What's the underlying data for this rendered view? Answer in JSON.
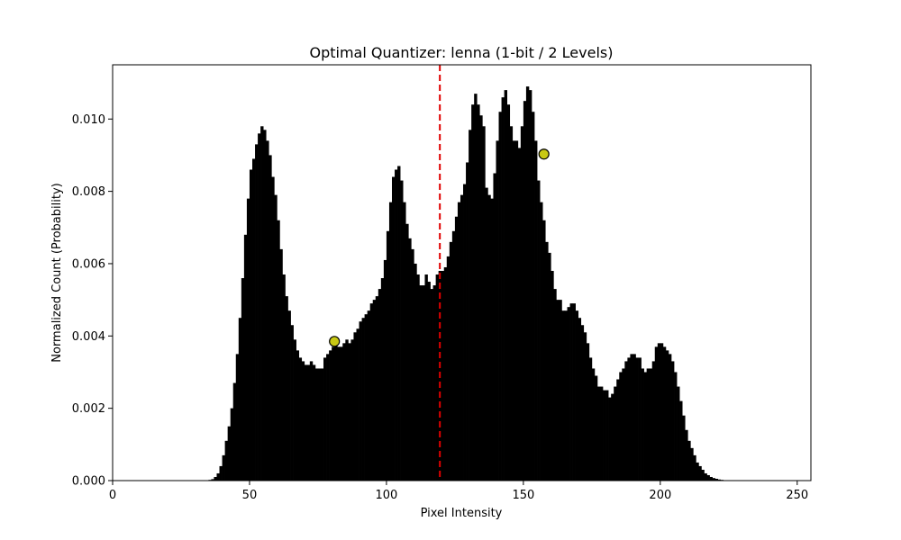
{
  "chart_data": {
    "type": "bar",
    "title": "Optimal Quantizer: lenna (1-bit / 2 Levels)",
    "xlabel": "Pixel Intensity",
    "ylabel": "Normalized Count (Probability)",
    "xlim": [
      0,
      255
    ],
    "ylim": [
      0,
      0.0115
    ],
    "xticks": [
      0,
      50,
      100,
      150,
      200,
      250
    ],
    "yticks": [
      0.0,
      0.002,
      0.004,
      0.006,
      0.008,
      0.01
    ],
    "ytick_labels": [
      "0.000",
      "0.002",
      "0.004",
      "0.006",
      "0.008",
      "0.010"
    ],
    "grid": false,
    "threshold": {
      "x": 119.5,
      "color": "#e00000",
      "style": "dashed"
    },
    "levels": [
      {
        "x": 81,
        "y": 0.00385
      },
      {
        "x": 157.5,
        "y": 0.00903
      }
    ],
    "histogram": {
      "bin_start": 0,
      "bin_width": 1,
      "values": [
        0,
        0,
        0,
        0,
        0,
        0,
        0,
        0,
        0,
        0,
        0,
        0,
        0,
        0,
        0,
        0,
        0,
        0,
        0,
        0,
        0,
        0,
        0,
        0,
        0,
        0,
        0,
        0,
        0,
        0,
        0,
        0,
        0,
        0,
        0,
        2e-05,
        4e-05,
        0.0001,
        0.0002,
        0.0004,
        0.0007,
        0.0011,
        0.0015,
        0.002,
        0.0027,
        0.0035,
        0.0045,
        0.0056,
        0.0068,
        0.0078,
        0.0086,
        0.0089,
        0.0093,
        0.0096,
        0.0098,
        0.0097,
        0.0094,
        0.009,
        0.0084,
        0.0079,
        0.0072,
        0.0064,
        0.0057,
        0.0051,
        0.0047,
        0.0043,
        0.0039,
        0.0036,
        0.0034,
        0.0033,
        0.0032,
        0.0032,
        0.0033,
        0.0032,
        0.0031,
        0.0031,
        0.0031,
        0.0034,
        0.0035,
        0.0036,
        0.0037,
        0.0038,
        0.0037,
        0.0037,
        0.0038,
        0.0039,
        0.0038,
        0.0039,
        0.0041,
        0.0042,
        0.0044,
        0.0045,
        0.0046,
        0.0047,
        0.0049,
        0.005,
        0.0051,
        0.0053,
        0.0056,
        0.0061,
        0.0069,
        0.0077,
        0.0084,
        0.0086,
        0.0087,
        0.0083,
        0.0077,
        0.0071,
        0.0067,
        0.0064,
        0.006,
        0.0057,
        0.0054,
        0.0054,
        0.0057,
        0.0055,
        0.0053,
        0.0054,
        0.0057,
        0.0058,
        0.0058,
        0.0059,
        0.0062,
        0.0066,
        0.0069,
        0.0073,
        0.0077,
        0.0079,
        0.0082,
        0.0088,
        0.0097,
        0.0104,
        0.0107,
        0.0104,
        0.0101,
        0.0098,
        0.0081,
        0.0079,
        0.0078,
        0.0085,
        0.0094,
        0.0102,
        0.0106,
        0.0108,
        0.0104,
        0.0098,
        0.0094,
        0.0094,
        0.0092,
        0.0098,
        0.0105,
        0.0109,
        0.0108,
        0.0102,
        0.0094,
        0.0083,
        0.0077,
        0.0072,
        0.0066,
        0.0063,
        0.0058,
        0.0053,
        0.005,
        0.005,
        0.0047,
        0.0047,
        0.0048,
        0.0049,
        0.0049,
        0.0047,
        0.0045,
        0.0043,
        0.0041,
        0.0038,
        0.0034,
        0.0031,
        0.0029,
        0.0026,
        0.0026,
        0.0025,
        0.0025,
        0.0023,
        0.0024,
        0.0026,
        0.0028,
        0.003,
        0.0031,
        0.0033,
        0.0034,
        0.0035,
        0.0035,
        0.0034,
        0.0034,
        0.0031,
        0.003,
        0.0031,
        0.0031,
        0.0033,
        0.0037,
        0.0038,
        0.0038,
        0.0037,
        0.0036,
        0.0035,
        0.0033,
        0.003,
        0.0026,
        0.0022,
        0.0018,
        0.0014,
        0.0011,
        0.0009,
        0.0007,
        0.0005,
        0.0004,
        0.0003,
        0.0002,
        0.00015,
        0.0001,
        7e-05,
        5e-05,
        3e-05,
        2e-05,
        1e-05,
        1e-05,
        5e-06,
        5e-06,
        0,
        0,
        0,
        0,
        0,
        0,
        0,
        0,
        0
      ]
    }
  }
}
